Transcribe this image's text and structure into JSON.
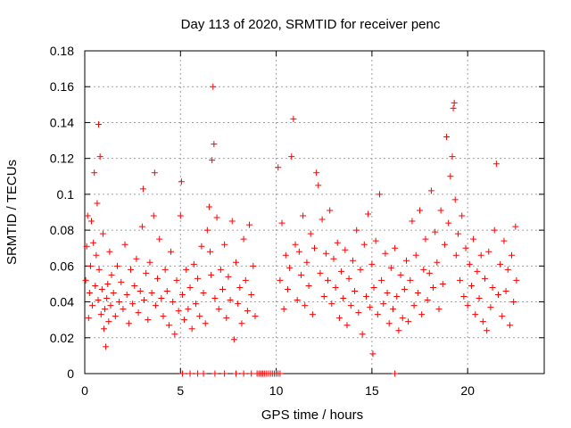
{
  "chart_data": {
    "type": "scatter",
    "title": "Day 113 of 2020, SRMTID for receiver penc",
    "xlabel": "GPS time / hours",
    "ylabel": "SRMTID / TECUs",
    "xlim": [
      0,
      24
    ],
    "ylim": [
      0,
      0.18
    ],
    "x_ticks": [
      0,
      5,
      10,
      15,
      20
    ],
    "y_ticks": [
      0,
      0.02,
      0.04,
      0.06,
      0.08,
      0.1,
      0.12,
      0.14,
      0.16,
      0.18
    ],
    "x_tick_labels": [
      "0",
      "5",
      "10",
      "15",
      "20"
    ],
    "y_tick_labels": [
      "0",
      "0.02",
      "0.04",
      "0.06",
      "0.08",
      "0.1",
      "0.12",
      "0.14",
      "0.16",
      "0.18"
    ],
    "grid": true,
    "marker": "+",
    "color": "#ff0000",
    "series": [
      {
        "name": "SRMTID",
        "points": [
          [
            0.05,
            0.052
          ],
          [
            0.1,
            0.071
          ],
          [
            0.15,
            0.088
          ],
          [
            0.2,
            0.031
          ],
          [
            0.25,
            0.045
          ],
          [
            0.3,
            0.06
          ],
          [
            0.35,
            0.085
          ],
          [
            0.4,
            0.038
          ],
          [
            0.45,
            0.073
          ],
          [
            0.5,
            0.112
          ],
          [
            0.55,
            0.049
          ],
          [
            0.6,
            0.066
          ],
          [
            0.65,
            0.095
          ],
          [
            0.7,
            0.041
          ],
          [
            0.72,
            0.139
          ],
          [
            0.75,
            0.058
          ],
          [
            0.8,
            0.121
          ],
          [
            0.85,
            0.033
          ],
          [
            0.9,
            0.047
          ],
          [
            0.95,
            0.078
          ],
          [
            1.0,
            0.025
          ],
          [
            1.05,
            0.036
          ],
          [
            1.1,
            0.015
          ],
          [
            1.15,
            0.042
          ],
          [
            1.2,
            0.05
          ],
          [
            1.25,
            0.029
          ],
          [
            1.3,
            0.068
          ],
          [
            1.35,
            0.038
          ],
          [
            1.4,
            0.055
          ],
          [
            1.5,
            0.045
          ],
          [
            1.6,
            0.032
          ],
          [
            1.7,
            0.06
          ],
          [
            1.8,
            0.04
          ],
          [
            1.9,
            0.051
          ],
          [
            2.0,
            0.036
          ],
          [
            2.1,
            0.072
          ],
          [
            2.2,
            0.044
          ],
          [
            2.3,
            0.028
          ],
          [
            2.4,
            0.058
          ],
          [
            2.5,
            0.039
          ],
          [
            2.6,
            0.049
          ],
          [
            2.7,
            0.064
          ],
          [
            2.8,
            0.034
          ],
          [
            2.9,
            0.046
          ],
          [
            3.0,
            0.082
          ],
          [
            3.05,
            0.103
          ],
          [
            3.1,
            0.041
          ],
          [
            3.2,
            0.056
          ],
          [
            3.3,
            0.03
          ],
          [
            3.4,
            0.062
          ],
          [
            3.5,
            0.045
          ],
          [
            3.6,
            0.088
          ],
          [
            3.65,
            0.112
          ],
          [
            3.7,
            0.038
          ],
          [
            3.8,
            0.053
          ],
          [
            3.9,
            0.075
          ],
          [
            4.0,
            0.042
          ],
          [
            4.1,
            0.032
          ],
          [
            4.2,
            0.058
          ],
          [
            4.3,
            0.046
          ],
          [
            4.4,
            0.027
          ],
          [
            4.5,
            0.068
          ],
          [
            4.6,
            0.04
          ],
          [
            4.7,
            0.022
          ],
          [
            4.8,
            0.052
          ],
          [
            4.9,
            0.035
          ],
          [
            5.0,
            0.088
          ],
          [
            5.05,
            0.107
          ],
          [
            5.1,
            0.044
          ],
          [
            5.2,
            0.03
          ],
          [
            5.3,
            0.058
          ],
          [
            5.4,
            0.036
          ],
          [
            5.5,
            0.048
          ],
          [
            5.6,
            0.025
          ],
          [
            5.7,
            0.061
          ],
          [
            5.8,
            0.039
          ],
          [
            5.9,
            0.053
          ],
          [
            6.0,
            0.032
          ],
          [
            6.1,
            0.071
          ],
          [
            6.2,
            0.045
          ],
          [
            6.3,
            0.028
          ],
          [
            6.4,
            0.08
          ],
          [
            6.5,
            0.093
          ],
          [
            6.55,
            0.068
          ],
          [
            6.6,
            0.055
          ],
          [
            6.65,
            0.119
          ],
          [
            6.7,
            0.16
          ],
          [
            6.75,
            0.128
          ],
          [
            6.8,
            0.042
          ],
          [
            6.9,
            0.087
          ],
          [
            7.0,
            0.036
          ],
          [
            7.1,
            0.058
          ],
          [
            7.2,
            0.047
          ],
          [
            7.3,
            0.072
          ],
          [
            7.4,
            0.031
          ],
          [
            7.5,
            0.054
          ],
          [
            7.6,
            0.041
          ],
          [
            7.7,
            0.085
          ],
          [
            7.8,
            0.019
          ],
          [
            7.9,
            0.062
          ],
          [
            8.0,
            0.039
          ],
          [
            8.1,
            0.048
          ],
          [
            8.2,
            0.028
          ],
          [
            8.3,
            0.075
          ],
          [
            8.4,
            0.052
          ],
          [
            8.5,
            0.035
          ],
          [
            8.6,
            0.083
          ],
          [
            8.7,
            0.044
          ],
          [
            8.8,
            0.06
          ],
          [
            8.9,
            0.032
          ],
          [
            10.1,
            0.115
          ],
          [
            10.2,
            0.052
          ],
          [
            10.3,
            0.084
          ],
          [
            10.4,
            0.036
          ],
          [
            10.5,
            0.066
          ],
          [
            10.6,
            0.047
          ],
          [
            10.7,
            0.059
          ],
          [
            10.8,
            0.121
          ],
          [
            10.9,
            0.142
          ],
          [
            11.0,
            0.072
          ],
          [
            11.1,
            0.041
          ],
          [
            11.2,
            0.068
          ],
          [
            11.3,
            0.055
          ],
          [
            11.4,
            0.088
          ],
          [
            11.5,
            0.038
          ],
          [
            11.6,
            0.062
          ],
          [
            11.7,
            0.049
          ],
          [
            11.8,
            0.078
          ],
          [
            11.9,
            0.033
          ],
          [
            12.0,
            0.07
          ],
          [
            12.1,
            0.112
          ],
          [
            12.2,
            0.105
          ],
          [
            12.3,
            0.056
          ],
          [
            12.4,
            0.086
          ],
          [
            12.5,
            0.043
          ],
          [
            12.6,
            0.067
          ],
          [
            12.7,
            0.052
          ],
          [
            12.8,
            0.091
          ],
          [
            12.9,
            0.039
          ],
          [
            13.0,
            0.064
          ],
          [
            13.1,
            0.048
          ],
          [
            13.2,
            0.073
          ],
          [
            13.3,
            0.031
          ],
          [
            13.4,
            0.057
          ],
          [
            13.5,
            0.042
          ],
          [
            13.6,
            0.069
          ],
          [
            13.7,
            0.027
          ],
          [
            13.8,
            0.053
          ],
          [
            13.9,
            0.038
          ],
          [
            14.0,
            0.063
          ],
          [
            14.1,
            0.046
          ],
          [
            14.2,
            0.08
          ],
          [
            14.3,
            0.034
          ],
          [
            14.4,
            0.058
          ],
          [
            14.5,
            0.022
          ],
          [
            14.6,
            0.072
          ],
          [
            14.7,
            0.043
          ],
          [
            14.8,
            0.089
          ],
          [
            14.9,
            0.037
          ],
          [
            15.0,
            0.061
          ],
          [
            15.05,
            0.011
          ],
          [
            15.1,
            0.048
          ],
          [
            15.2,
            0.074
          ],
          [
            15.3,
            0.033
          ],
          [
            15.4,
            0.1
          ],
          [
            15.5,
            0.052
          ],
          [
            15.6,
            0.039
          ],
          [
            15.7,
            0.067
          ],
          [
            15.8,
            0.045
          ],
          [
            15.9,
            0.028
          ],
          [
            16.0,
            0.059
          ],
          [
            16.1,
            0.036
          ],
          [
            16.2,
            0.07
          ],
          [
            16.3,
            0.043
          ],
          [
            16.4,
            0.024
          ],
          [
            16.5,
            0.055
          ],
          [
            16.6,
            0.031
          ],
          [
            16.7,
            0.047
          ],
          [
            16.8,
            0.063
          ],
          [
            16.9,
            0.029
          ],
          [
            17.0,
            0.052
          ],
          [
            17.1,
            0.085
          ],
          [
            17.2,
            0.038
          ],
          [
            17.3,
            0.066
          ],
          [
            17.4,
            0.045
          ],
          [
            17.5,
            0.091
          ],
          [
            17.6,
            0.033
          ],
          [
            17.7,
            0.058
          ],
          [
            17.8,
            0.075
          ],
          [
            17.9,
            0.041
          ],
          [
            18.0,
            0.056
          ],
          [
            18.1,
            0.102
          ],
          [
            18.2,
            0.048
          ],
          [
            18.3,
            0.079
          ],
          [
            18.4,
            0.062
          ],
          [
            18.5,
            0.036
          ],
          [
            18.6,
            0.091
          ],
          [
            18.7,
            0.05
          ],
          [
            18.8,
            0.072
          ],
          [
            18.9,
            0.132
          ],
          [
            19.0,
            0.084
          ],
          [
            19.1,
            0.11
          ],
          [
            19.2,
            0.121
          ],
          [
            19.25,
            0.148
          ],
          [
            19.3,
            0.151
          ],
          [
            19.35,
            0.097
          ],
          [
            19.4,
            0.066
          ],
          [
            19.5,
            0.078
          ],
          [
            19.6,
            0.052
          ],
          [
            19.7,
            0.088
          ],
          [
            19.8,
            0.043
          ],
          [
            19.9,
            0.07
          ],
          [
            20.0,
            0.038
          ],
          [
            20.1,
            0.061
          ],
          [
            20.2,
            0.049
          ],
          [
            20.3,
            0.075
          ],
          [
            20.4,
            0.033
          ],
          [
            20.5,
            0.057
          ],
          [
            20.6,
            0.042
          ],
          [
            20.7,
            0.066
          ],
          [
            20.8,
            0.029
          ],
          [
            20.9,
            0.053
          ],
          [
            21.0,
            0.024
          ],
          [
            21.1,
            0.068
          ],
          [
            21.2,
            0.037
          ],
          [
            21.3,
            0.048
          ],
          [
            21.4,
            0.08
          ],
          [
            21.5,
            0.117
          ],
          [
            21.6,
            0.044
          ],
          [
            21.7,
            0.061
          ],
          [
            21.8,
            0.032
          ],
          [
            21.9,
            0.074
          ],
          [
            22.0,
            0.046
          ],
          [
            22.1,
            0.058
          ],
          [
            22.2,
            0.027
          ],
          [
            22.3,
            0.066
          ],
          [
            22.4,
            0.04
          ],
          [
            22.5,
            0.082
          ],
          [
            22.55,
            0.052
          ],
          [
            5.1,
            0.0
          ],
          [
            5.5,
            0.0
          ],
          [
            5.9,
            0.0
          ],
          [
            6.2,
            0.0
          ],
          [
            6.8,
            0.0
          ],
          [
            7.3,
            0.0
          ],
          [
            7.9,
            0.0
          ],
          [
            8.3,
            0.0
          ],
          [
            8.7,
            0.0
          ],
          [
            9.0,
            0.0
          ],
          [
            9.1,
            0.0
          ],
          [
            9.2,
            0.0
          ],
          [
            9.3,
            0.0
          ],
          [
            9.4,
            0.0
          ],
          [
            9.5,
            0.0
          ],
          [
            9.6,
            0.0
          ],
          [
            9.7,
            0.0
          ],
          [
            9.8,
            0.0
          ],
          [
            9.9,
            0.0
          ],
          [
            10.0,
            0.0
          ],
          [
            10.1,
            0.0
          ],
          [
            10.2,
            0.0
          ],
          [
            16.2,
            0.0
          ]
        ]
      }
    ]
  }
}
